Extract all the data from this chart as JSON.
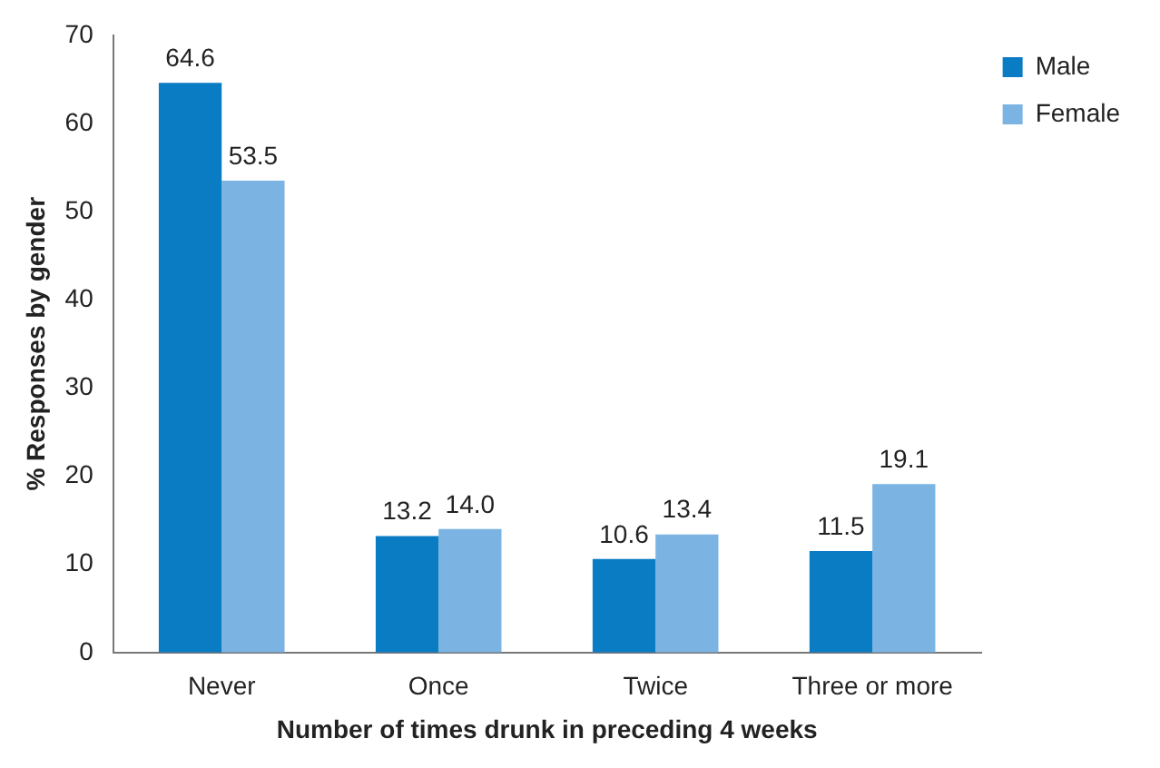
{
  "chart_data": {
    "type": "bar",
    "xlabel": "Number of times drunk in preceding 4 weeks",
    "ylabel": "% Responses by gender",
    "categories": [
      "Never",
      "Once",
      "Twice",
      "Three or more"
    ],
    "series": [
      {
        "name": "Male",
        "color": "#0a7cc4",
        "values": [
          64.6,
          13.2,
          10.6,
          11.5
        ]
      },
      {
        "name": "Female",
        "color": "#7bb4e2",
        "values": [
          53.5,
          14.0,
          13.4,
          19.1
        ]
      }
    ],
    "value_labels": [
      [
        "64.6",
        "13.2",
        "10.6",
        "11.5"
      ],
      [
        "53.5",
        "14.0",
        "13.4",
        "19.1"
      ]
    ],
    "ylim": [
      0,
      70
    ],
    "yticks": [
      0,
      10,
      20,
      30,
      40,
      50,
      60,
      70
    ],
    "grid": false,
    "legend": "top right"
  }
}
